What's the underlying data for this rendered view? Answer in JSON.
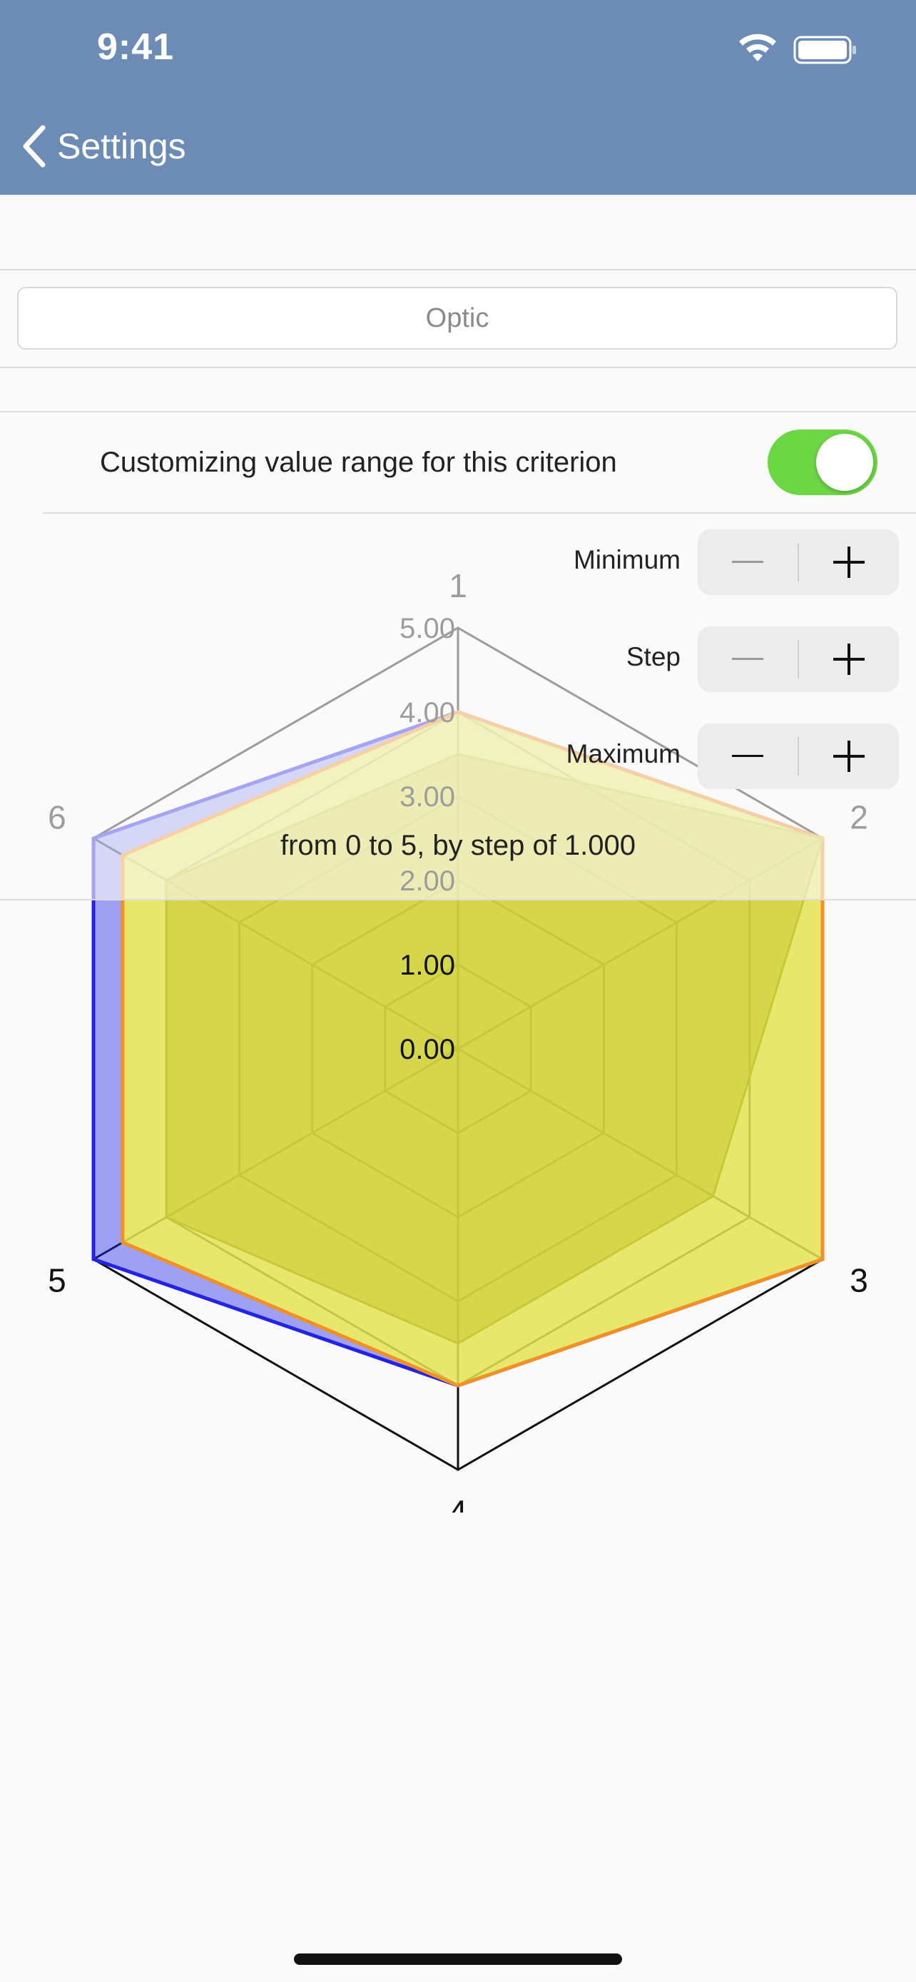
{
  "status_bar": {
    "time": "9:41"
  },
  "nav": {
    "back_label": "Settings"
  },
  "criterion": {
    "name": "Optic"
  },
  "custom_range": {
    "label": "Customizing value range for this criterion",
    "enabled": true
  },
  "steppers": [
    {
      "label": "Minimum",
      "minus": "−",
      "plus": "+"
    },
    {
      "label": "Step",
      "minus": "−",
      "plus": "+"
    },
    {
      "label": "Maximum",
      "minus": "−",
      "plus": "+"
    }
  ],
  "range_summary": "from 0 to 5, by step of 1.000",
  "colors": {
    "header": "#6c8bb5",
    "toggle_on": "#6cd645",
    "series_blue": "#2323e6",
    "series_orange": "#f29024",
    "series_yellow_fill": "#ffff40"
  },
  "chart_data": {
    "type": "radar",
    "axes": [
      "1",
      "2",
      "3",
      "4",
      "5",
      "6"
    ],
    "rlim": [
      0,
      5
    ],
    "ticks": [
      "0.00",
      "1.00",
      "2.00",
      "3.00",
      "4.00",
      "5.00"
    ],
    "grid": true,
    "series": [
      {
        "values": [
          4,
          5,
          5,
          4,
          5,
          5
        ],
        "color": "#2323e6"
      },
      {
        "values": [
          4,
          5,
          5,
          4,
          4.6,
          4.6
        ],
        "color": "#f29024"
      },
      {
        "values": [
          3.5,
          5,
          3.5,
          3.5,
          4,
          4
        ],
        "color": "#c8c832"
      }
    ]
  }
}
